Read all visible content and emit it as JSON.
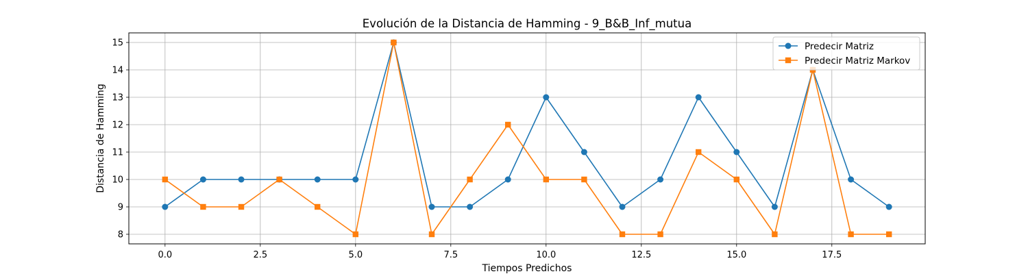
{
  "chart_data": {
    "type": "line",
    "title": "Evolución de la Distancia de Hamming - 9_B&B_Inf_mutua",
    "xlabel": "Tiempos Predichos",
    "ylabel": "Distancia de Hamming",
    "xlim": [
      -0.95,
      19.95
    ],
    "ylim": [
      7.65,
      15.35
    ],
    "xticks": [
      0.0,
      2.5,
      5.0,
      7.5,
      10.0,
      12.5,
      15.0,
      17.5
    ],
    "xtick_labels": [
      "0.0",
      "2.5",
      "5.0",
      "7.5",
      "10.0",
      "12.5",
      "15.0",
      "17.5"
    ],
    "yticks": [
      8,
      9,
      10,
      11,
      12,
      13,
      14,
      15
    ],
    "ytick_labels": [
      "8",
      "9",
      "10",
      "11",
      "12",
      "13",
      "14",
      "15"
    ],
    "grid": true,
    "legend_position": "top-right",
    "x": [
      0,
      1,
      2,
      3,
      4,
      5,
      6,
      7,
      8,
      9,
      10,
      11,
      12,
      13,
      14,
      15,
      16,
      17,
      18,
      19
    ],
    "series": [
      {
        "name": "Predecir Matriz",
        "color": "#1f77b4",
        "marker": "circle",
        "values": [
          9,
          10,
          10,
          10,
          10,
          10,
          15,
          9,
          9,
          10,
          13,
          11,
          9,
          10,
          13,
          11,
          9,
          14,
          10,
          9
        ]
      },
      {
        "name": "Predecir Matriz Markov",
        "color": "#ff7f0e",
        "marker": "square",
        "values": [
          10,
          9,
          9,
          10,
          9,
          8,
          15,
          8,
          10,
          12,
          10,
          10,
          8,
          8,
          11,
          10,
          8,
          14,
          8,
          8
        ]
      }
    ]
  }
}
